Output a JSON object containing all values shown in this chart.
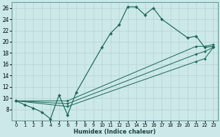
{
  "xlabel": "Humidex (Indice chaleur)",
  "bg_color": "#cce8e8",
  "grid_color": "#b8d4d4",
  "line_color": "#1a6b5a",
  "xlim": [
    -0.5,
    23.5
  ],
  "ylim": [
    6,
    27
  ],
  "xticks": [
    0,
    1,
    2,
    3,
    4,
    5,
    6,
    7,
    8,
    9,
    10,
    11,
    12,
    13,
    14,
    15,
    16,
    17,
    18,
    19,
    20,
    21,
    22,
    23
  ],
  "yticks": [
    8,
    10,
    12,
    14,
    16,
    18,
    20,
    22,
    24,
    26
  ],
  "series": [
    {
      "x": [
        0,
        1,
        2,
        3,
        4,
        5,
        6,
        7,
        10,
        11,
        12,
        13,
        14,
        15,
        16,
        17,
        20,
        21,
        22,
        23
      ],
      "y": [
        9.5,
        8.8,
        8.2,
        7.5,
        6.3,
        10.5,
        7.0,
        11.0,
        19.0,
        21.5,
        23.0,
        26.2,
        26.2,
        24.8,
        26.0,
        24.0,
        20.7,
        21.0,
        19.0,
        19.2
      ]
    },
    {
      "x": [
        0,
        6,
        21,
        22,
        23
      ],
      "y": [
        9.5,
        9.5,
        19.2,
        19.2,
        19.5
      ]
    },
    {
      "x": [
        0,
        6,
        21,
        22,
        23
      ],
      "y": [
        9.5,
        9.0,
        17.8,
        18.3,
        19.0
      ]
    },
    {
      "x": [
        0,
        6,
        21,
        22,
        23
      ],
      "y": [
        9.5,
        8.5,
        16.5,
        17.0,
        19.0
      ]
    }
  ]
}
